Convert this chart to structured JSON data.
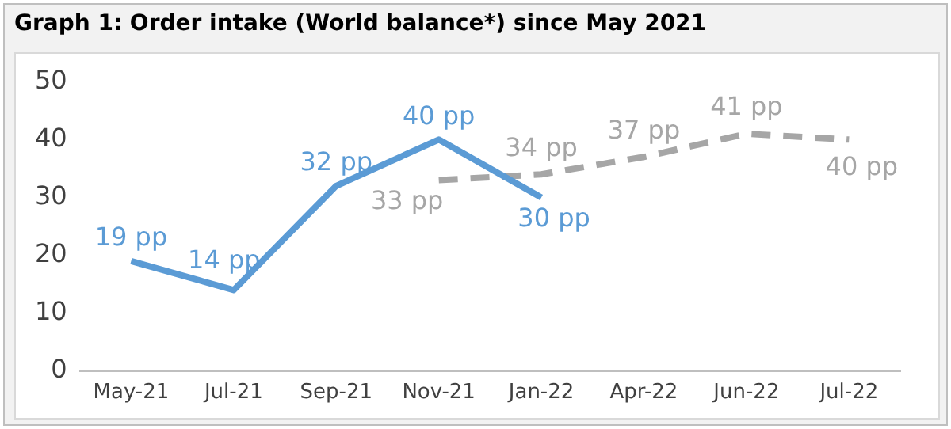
{
  "chart_data": {
    "type": "line",
    "title": "Graph 1: Order intake (World balance*) since May 2021",
    "categories": [
      "May-21",
      "Jul-21",
      "Sep-21",
      "Nov-21",
      "Jan-22",
      "Apr-22",
      "Jun-22",
      "Jul-22"
    ],
    "series": [
      {
        "color": "#5b9bd5",
        "values": [
          19,
          14,
          32,
          40,
          30,
          null,
          null,
          null
        ],
        "value_labels": [
          "19 pp",
          "14 pp",
          "32 pp",
          "40 pp",
          "30 pp",
          null,
          null,
          null
        ],
        "line_style": "solid"
      },
      {
        "color": "#a6a6a6",
        "values": [
          null,
          null,
          null,
          33,
          34,
          37,
          41,
          40
        ],
        "value_labels": [
          null,
          null,
          null,
          "33 pp",
          "34 pp",
          "37 pp",
          "41 pp",
          "40 pp"
        ],
        "line_style": "dashed"
      }
    ],
    "ylim": [
      0,
      50
    ],
    "yticks": [
      0,
      10,
      20,
      30,
      40,
      50
    ],
    "grid": false,
    "legend": false,
    "marker": "none"
  }
}
